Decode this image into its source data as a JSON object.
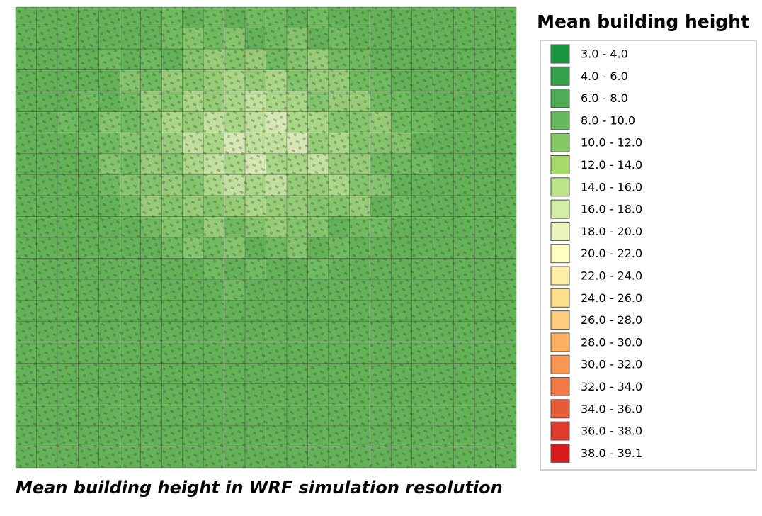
{
  "legend": {
    "title": "Mean building height",
    "items": [
      {
        "label": "3.0 - 4.0",
        "color": "#1a9641"
      },
      {
        "label": "4.0 - 6.0",
        "color": "#33a04a"
      },
      {
        "label": "6.0 - 8.0",
        "color": "#4dab53"
      },
      {
        "label": "8.0 - 10.0",
        "color": "#66b95c"
      },
      {
        "label": "10.0 - 12.0",
        "color": "#86c865"
      },
      {
        "label": "12.0 - 14.0",
        "color": "#a6d96a"
      },
      {
        "label": "14.0 - 16.0",
        "color": "#bde48a"
      },
      {
        "label": "16.0 - 18.0",
        "color": "#d3eea5"
      },
      {
        "label": "18.0 - 20.0",
        "color": "#e9f7bf"
      },
      {
        "label": "20.0 - 22.0",
        "color": "#ffffbf"
      },
      {
        "label": "22.0 - 24.0",
        "color": "#feefa6"
      },
      {
        "label": "24.0 - 26.0",
        "color": "#fee08b"
      },
      {
        "label": "26.0 - 28.0",
        "color": "#fecc7a"
      },
      {
        "label": "28.0 - 30.0",
        "color": "#fdae61"
      },
      {
        "label": "30.0 - 32.0",
        "color": "#f89752"
      },
      {
        "label": "32.0 - 34.0",
        "color": "#f17a47"
      },
      {
        "label": "34.0 - 36.0",
        "color": "#e85c3a"
      },
      {
        "label": "36.0 - 38.0",
        "color": "#dd3b2b"
      },
      {
        "label": "38.0 - 39.1",
        "color": "#d7191c"
      }
    ]
  },
  "caption": "Mean building height in WRF simulation resolution"
}
